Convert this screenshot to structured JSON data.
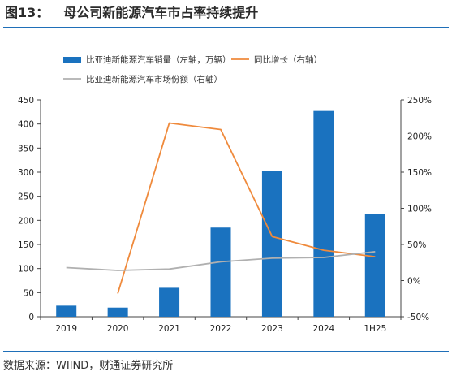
{
  "figure": {
    "number": "图13：",
    "title": "母公司新能源汽车市占率持续提升",
    "source": "数据来源：WIIND，财通证券研究所"
  },
  "chart_data": {
    "type": "bar+line",
    "categories": [
      "2019",
      "2020",
      "2021",
      "2022",
      "2023",
      "2024",
      "1H25"
    ],
    "series": [
      {
        "name": "比亚迪新能源汽车销量（左轴，万辆）",
        "type": "bar",
        "axis": "left",
        "color": "#1a72bf",
        "values": [
          23,
          19,
          60,
          185,
          302,
          427,
          214
        ]
      },
      {
        "name": "同比增长（右轴）",
        "type": "line",
        "axis": "right",
        "color": "#ef8a3c",
        "values": [
          null,
          -18,
          218,
          209,
          61,
          42,
          33
        ]
      },
      {
        "name": "比亚迪新能源汽车市场份额（右轴）",
        "type": "line",
        "axis": "right",
        "color": "#b0b0b0",
        "values": [
          18,
          14,
          16,
          26,
          31,
          32,
          40
        ]
      }
    ],
    "left_axis": {
      "min": 0,
      "max": 450,
      "ticks": [
        "0",
        "50",
        "100",
        "150",
        "200",
        "250",
        "300",
        "350",
        "400",
        "450"
      ]
    },
    "right_axis": {
      "min": -50,
      "max": 250,
      "ticks": [
        "-50%",
        "0%",
        "50%",
        "100%",
        "150%",
        "200%",
        "250%"
      ]
    },
    "legend_position": "top",
    "grid": false
  }
}
